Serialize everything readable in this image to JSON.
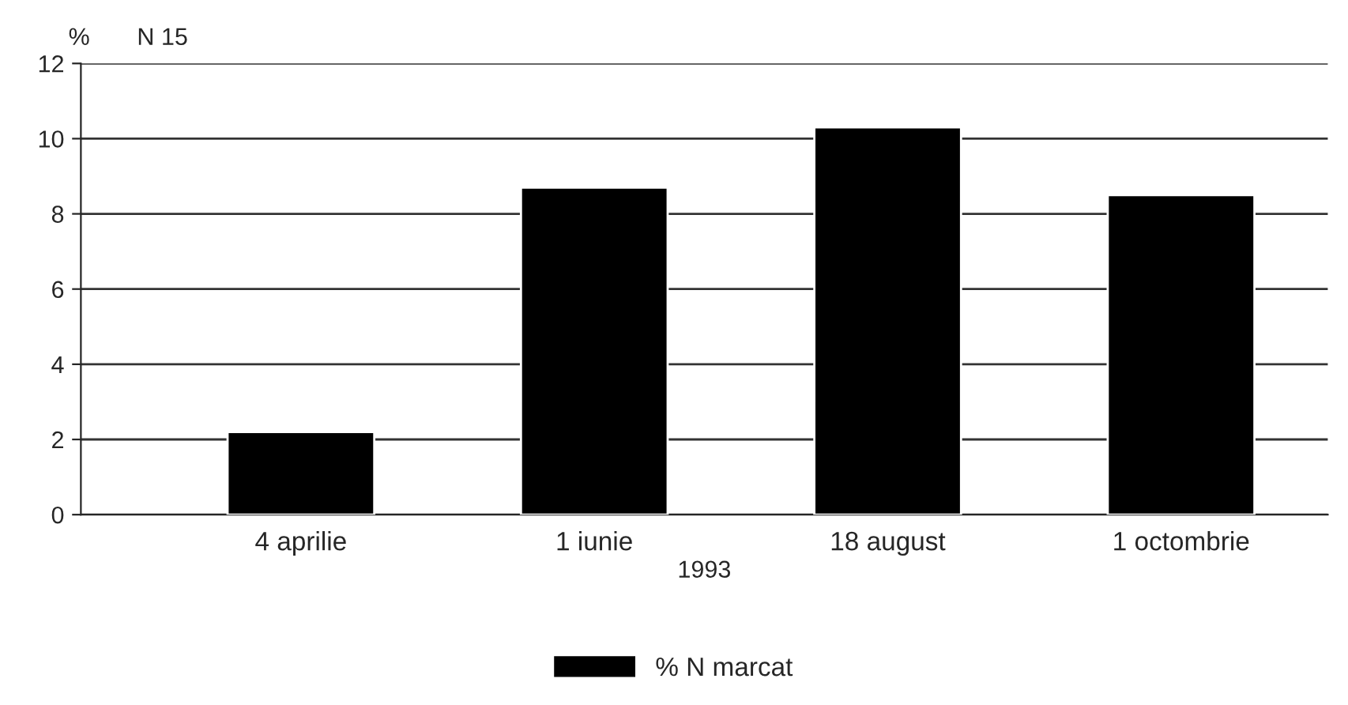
{
  "chart_data": {
    "type": "bar",
    "title": "N 15",
    "ylabel": "%",
    "xlabel": "1993",
    "categories": [
      "4 aprilie",
      "1 iunie",
      "18 august",
      "1 octombrie"
    ],
    "series": [
      {
        "name": "% N marcat",
        "color": "#000000",
        "values": [
          2.2,
          8.7,
          10.3,
          8.5
        ]
      }
    ],
    "ylim": [
      0,
      12
    ],
    "yticks": [
      0,
      2,
      4,
      6,
      8,
      10,
      12
    ],
    "grid": "y",
    "legend": "bottom"
  }
}
